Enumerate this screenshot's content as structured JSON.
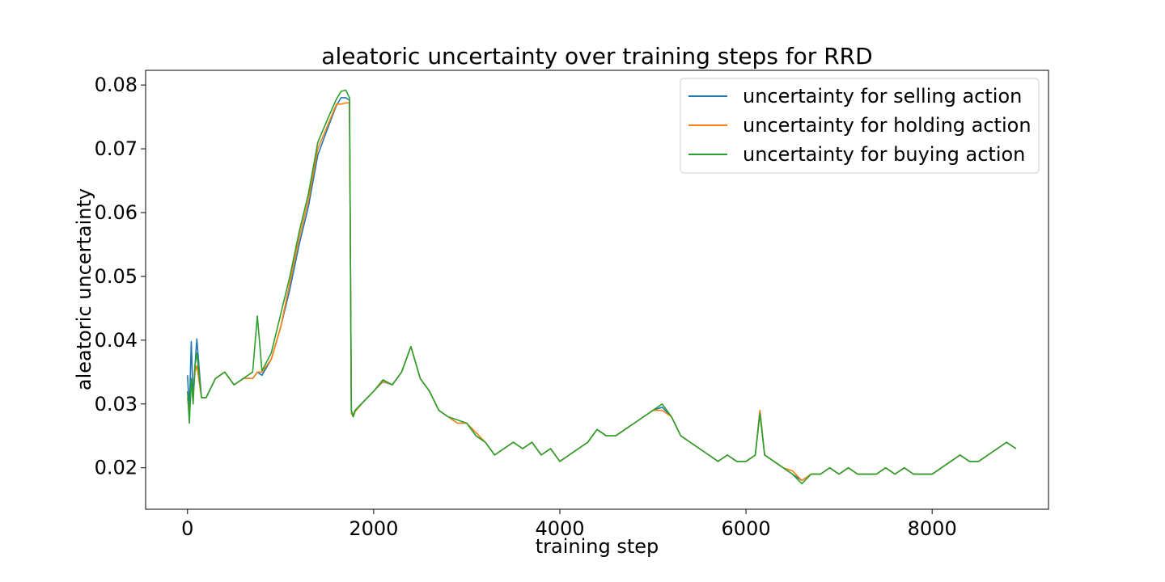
{
  "chart_data": {
    "type": "line",
    "title": "aleatoric uncertainty over training steps for RRD",
    "xlabel": "training step",
    "ylabel": "aleatoric uncertainty",
    "xlim": [
      -450,
      9250
    ],
    "ylim": [
      0.0135,
      0.0823
    ],
    "x_ticks": [
      0,
      2000,
      4000,
      6000,
      8000
    ],
    "x_tick_labels": [
      "0",
      "2000",
      "4000",
      "6000",
      "8000"
    ],
    "y_ticks": [
      0.02,
      0.03,
      0.04,
      0.05,
      0.06,
      0.07,
      0.08
    ],
    "y_tick_labels": [
      "0.02",
      "0.03",
      "0.04",
      "0.05",
      "0.06",
      "0.07",
      "0.08"
    ],
    "grid": false,
    "legend_position": "top-right",
    "x": [
      0,
      20,
      40,
      60,
      80,
      100,
      150,
      200,
      300,
      400,
      500,
      600,
      700,
      750,
      800,
      900,
      1000,
      1100,
      1200,
      1300,
      1400,
      1500,
      1600,
      1650,
      1700,
      1740,
      1760,
      1780,
      1800,
      1900,
      2000,
      2100,
      2200,
      2300,
      2400,
      2500,
      2600,
      2700,
      2800,
      2900,
      3000,
      3100,
      3200,
      3300,
      3400,
      3500,
      3600,
      3700,
      3800,
      3900,
      4000,
      4100,
      4200,
      4300,
      4400,
      4500,
      4600,
      4700,
      4800,
      4900,
      5000,
      5100,
      5200,
      5300,
      5400,
      5500,
      5600,
      5700,
      5800,
      5900,
      6000,
      6100,
      6150,
      6200,
      6300,
      6400,
      6500,
      6600,
      6700,
      6800,
      6900,
      7000,
      7100,
      7200,
      7300,
      7400,
      7500,
      7600,
      7700,
      7800,
      7900,
      8000,
      8100,
      8200,
      8300,
      8400,
      8500,
      8600,
      8700,
      8800,
      8900
    ],
    "series": [
      {
        "name": "uncertainty for selling action",
        "color": "#1f77b4",
        "values": [
          0.0345,
          0.029,
          0.0398,
          0.031,
          0.036,
          0.0402,
          0.031,
          0.031,
          0.034,
          0.035,
          0.033,
          0.034,
          0.034,
          0.035,
          0.0345,
          0.037,
          0.042,
          0.048,
          0.055,
          0.061,
          0.069,
          0.073,
          0.0768,
          0.078,
          0.078,
          0.0776,
          0.0288,
          0.0282,
          0.029,
          0.0305,
          0.032,
          0.0335,
          0.033,
          0.035,
          0.039,
          0.034,
          0.032,
          0.029,
          0.028,
          0.027,
          0.027,
          0.025,
          0.024,
          0.022,
          0.023,
          0.024,
          0.023,
          0.024,
          0.022,
          0.023,
          0.021,
          0.022,
          0.023,
          0.024,
          0.026,
          0.025,
          0.025,
          0.026,
          0.027,
          0.028,
          0.029,
          0.0295,
          0.028,
          0.025,
          0.024,
          0.023,
          0.022,
          0.021,
          0.022,
          0.021,
          0.021,
          0.022,
          0.029,
          0.022,
          0.021,
          0.02,
          0.019,
          0.018,
          0.019,
          0.019,
          0.02,
          0.019,
          0.02,
          0.019,
          0.019,
          0.019,
          0.02,
          0.019,
          0.02,
          0.019,
          0.019,
          0.019,
          0.02,
          0.021,
          0.022,
          0.021,
          0.021,
          0.022,
          0.023,
          0.024,
          0.023
        ]
      },
      {
        "name": "uncertainty for holding action",
        "color": "#ff7f0e",
        "values": [
          0.031,
          0.028,
          0.033,
          0.031,
          0.035,
          0.036,
          0.031,
          0.031,
          0.034,
          0.035,
          0.033,
          0.034,
          0.034,
          0.035,
          0.035,
          0.037,
          0.042,
          0.049,
          0.056,
          0.062,
          0.07,
          0.0735,
          0.077,
          0.077,
          0.0772,
          0.0772,
          0.0285,
          0.028,
          0.0288,
          0.0305,
          0.032,
          0.0336,
          0.033,
          0.035,
          0.039,
          0.034,
          0.032,
          0.029,
          0.028,
          0.027,
          0.027,
          0.0255,
          0.024,
          0.022,
          0.023,
          0.024,
          0.023,
          0.024,
          0.022,
          0.023,
          0.021,
          0.022,
          0.023,
          0.024,
          0.026,
          0.025,
          0.025,
          0.026,
          0.027,
          0.028,
          0.029,
          0.029,
          0.028,
          0.025,
          0.024,
          0.023,
          0.022,
          0.021,
          0.022,
          0.021,
          0.021,
          0.022,
          0.029,
          0.022,
          0.021,
          0.02,
          0.0195,
          0.018,
          0.019,
          0.019,
          0.02,
          0.019,
          0.02,
          0.019,
          0.019,
          0.019,
          0.02,
          0.019,
          0.02,
          0.019,
          0.019,
          0.019,
          0.02,
          0.021,
          0.022,
          0.021,
          0.021,
          0.022,
          0.023,
          0.024,
          0.023
        ]
      },
      {
        "name": "uncertainty for buying action",
        "color": "#2ca02c",
        "values": [
          0.032,
          0.027,
          0.034,
          0.03,
          0.036,
          0.038,
          0.031,
          0.031,
          0.034,
          0.035,
          0.033,
          0.034,
          0.035,
          0.0438,
          0.0352,
          0.038,
          0.044,
          0.05,
          0.057,
          0.063,
          0.071,
          0.0745,
          0.0778,
          0.079,
          0.0792,
          0.078,
          0.029,
          0.028,
          0.029,
          0.0305,
          0.032,
          0.0338,
          0.033,
          0.035,
          0.039,
          0.034,
          0.032,
          0.029,
          0.028,
          0.0275,
          0.027,
          0.025,
          0.024,
          0.022,
          0.023,
          0.024,
          0.023,
          0.024,
          0.022,
          0.023,
          0.021,
          0.022,
          0.023,
          0.024,
          0.026,
          0.025,
          0.025,
          0.026,
          0.027,
          0.028,
          0.029,
          0.03,
          0.028,
          0.025,
          0.024,
          0.023,
          0.022,
          0.021,
          0.022,
          0.021,
          0.021,
          0.022,
          0.0285,
          0.022,
          0.021,
          0.02,
          0.019,
          0.0175,
          0.019,
          0.019,
          0.02,
          0.019,
          0.02,
          0.019,
          0.019,
          0.019,
          0.02,
          0.019,
          0.02,
          0.019,
          0.019,
          0.019,
          0.02,
          0.021,
          0.022,
          0.021,
          0.021,
          0.022,
          0.023,
          0.024,
          0.023
        ]
      }
    ]
  }
}
